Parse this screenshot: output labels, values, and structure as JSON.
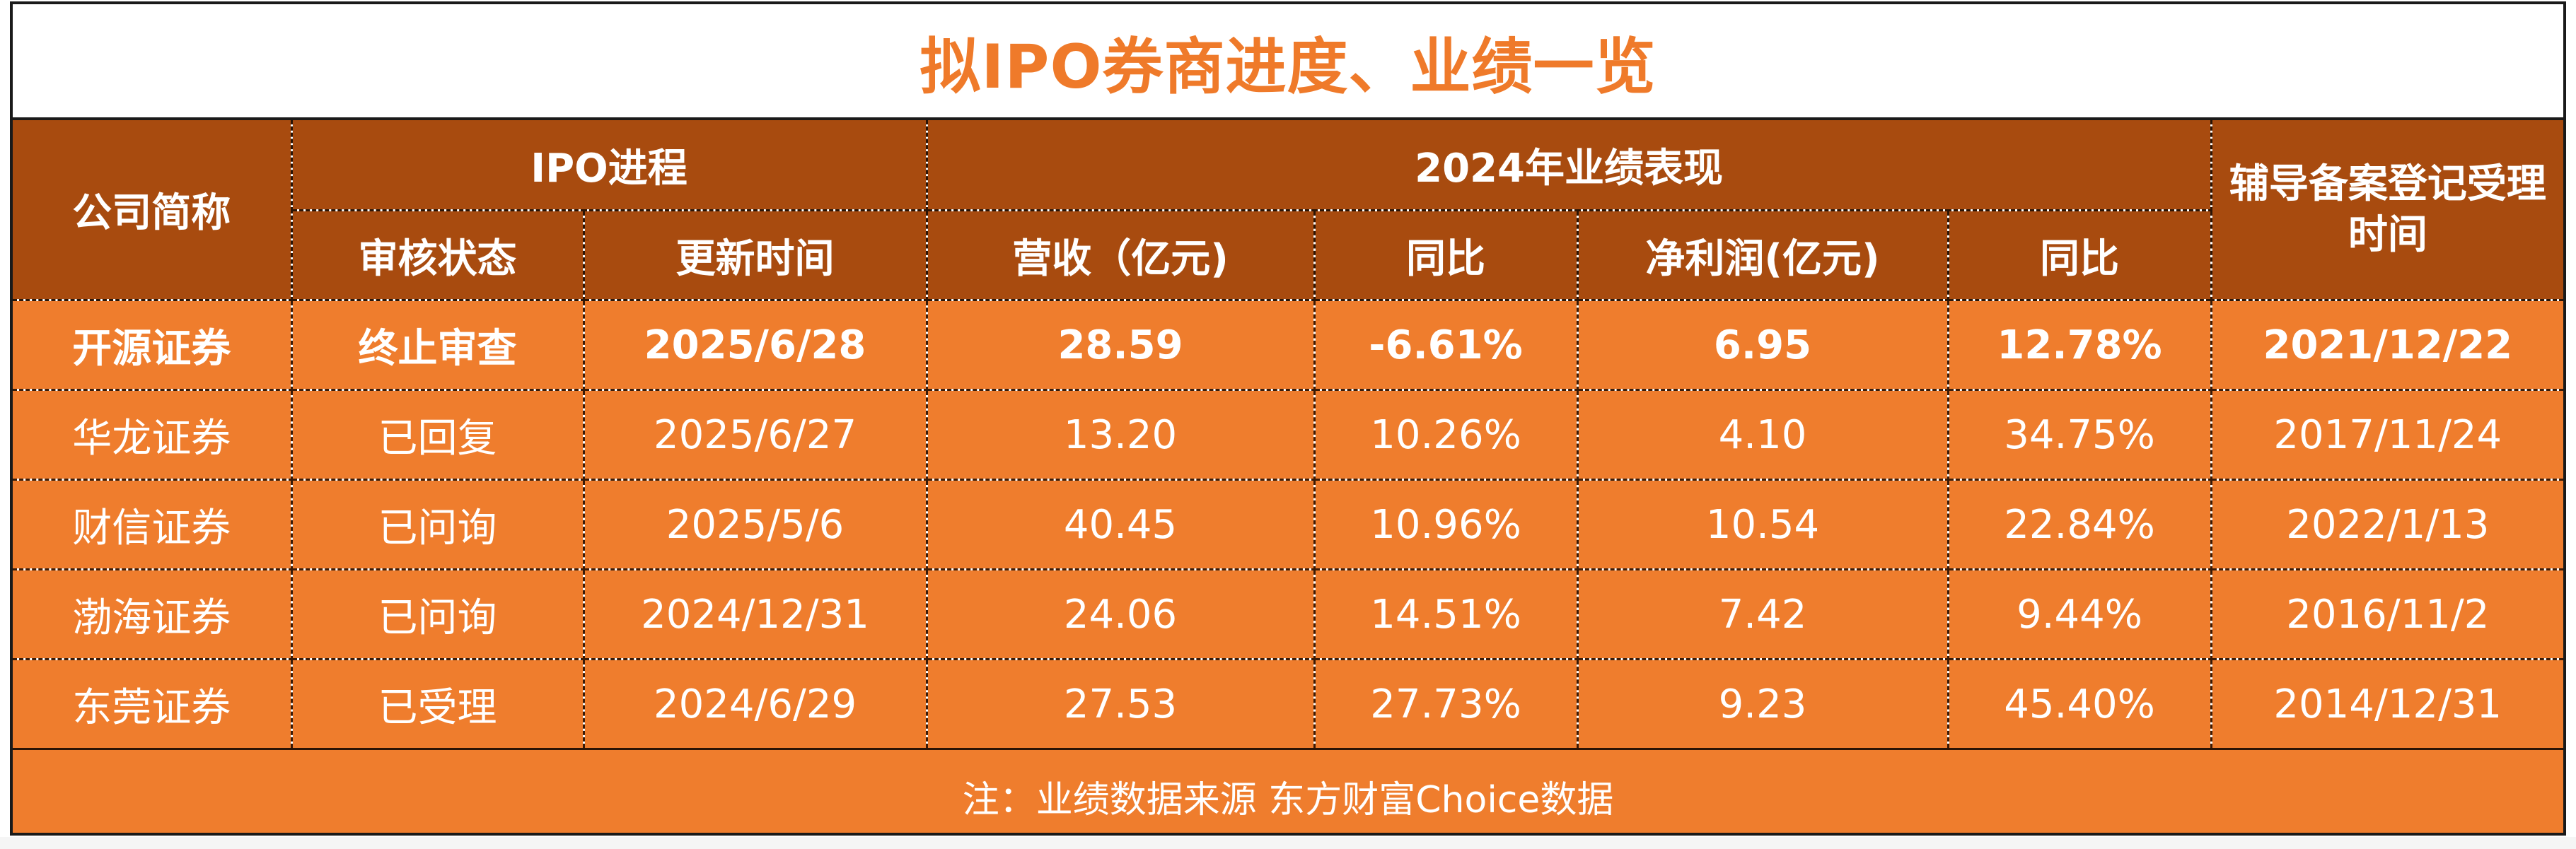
{
  "title": "拟IPO券商进度、业绩一览",
  "header": {
    "company": "公司简称",
    "group_ipo": "IPO进程",
    "group_perf": "2024年业绩表现",
    "filing_time": "辅导备案登记受理时间",
    "status": "审核状态",
    "update_time": "更新时间",
    "revenue": "营收（亿元)",
    "revenue_yoy": "同比",
    "net_profit": "净利润(亿元)",
    "profit_yoy": "同比"
  },
  "rows": [
    {
      "company": "开源证券",
      "status": "终止审查",
      "update": "2025/6/28",
      "revenue": "28.59",
      "revenue_yoy": "-6.61%",
      "profit": "6.95",
      "profit_yoy": "12.78%",
      "filing": "2021/12/22"
    },
    {
      "company": "华龙证券",
      "status": "已回复",
      "update": "2025/6/27",
      "revenue": "13.20",
      "revenue_yoy": "10.26%",
      "profit": "4.10",
      "profit_yoy": "34.75%",
      "filing": "2017/11/24"
    },
    {
      "company": "财信证券",
      "status": "已问询",
      "update": "2025/5/6",
      "revenue": "40.45",
      "revenue_yoy": "10.96%",
      "profit": "10.54",
      "profit_yoy": "22.84%",
      "filing": "2022/1/13"
    },
    {
      "company": "渤海证券",
      "status": "已问询",
      "update": "2024/12/31",
      "revenue": "24.06",
      "revenue_yoy": "14.51%",
      "profit": "7.42",
      "profit_yoy": "9.44%",
      "filing": "2016/11/2"
    },
    {
      "company": "东莞证券",
      "status": "已受理",
      "update": "2024/6/29",
      "revenue": "27.53",
      "revenue_yoy": "27.73%",
      "profit": "9.23",
      "profit_yoy": "45.40%",
      "filing": "2014/12/31"
    }
  ],
  "note": "注：业绩数据来源 东方财富Choice数据",
  "colors": {
    "title": "#ef7a2a",
    "header_bg": "#a84b0f",
    "body_bg": "#ef7d2d",
    "text": "#ffffff"
  }
}
